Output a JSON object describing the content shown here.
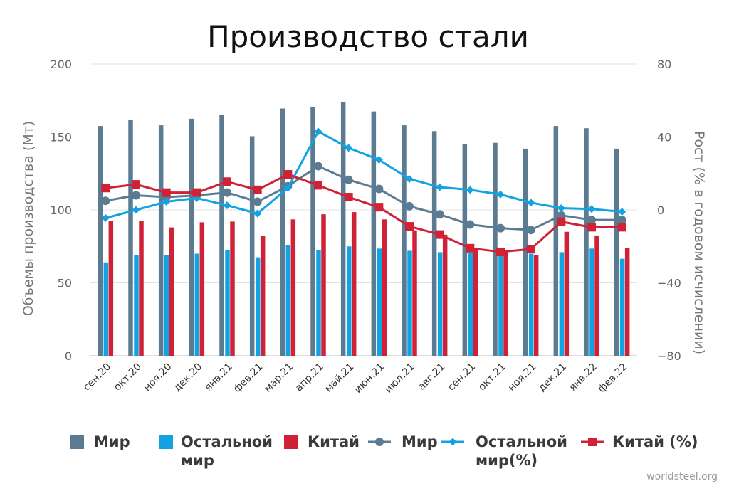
{
  "chart_data": {
    "type": "bar+line",
    "title": "Производство стали",
    "ylabel_left": "Объемы производства (Мт)",
    "ylabel_right": "Рост (% в годовом исчислении)",
    "ylim_left": [
      0,
      200
    ],
    "ylim_right": [
      -80,
      80
    ],
    "yticks_left": [
      "0",
      "50",
      "100",
      "150",
      "200"
    ],
    "yticks_right": [
      "−80",
      "−40",
      "0",
      "40",
      "80"
    ],
    "grid": true,
    "legend_position": "bottom",
    "categories": [
      "сен.20",
      "окт.20",
      "ноя.20",
      "дек.20",
      "янв.21",
      "фев.21",
      "мар.21",
      "апр.21",
      "май.21",
      "июн.21",
      "июл.21",
      "авг.21",
      "сен.21",
      "окт.21",
      "ноя.21",
      "дек.21",
      "янв.22",
      "фев.22"
    ],
    "bar_series": [
      {
        "name": "Мир",
        "color": "#5b7b92",
        "axis": "left",
        "values": [
          157.5,
          161.5,
          158,
          162.5,
          165,
          150.5,
          169.5,
          170.5,
          174,
          167.5,
          158,
          154,
          145,
          146,
          142,
          157.5,
          156,
          142
        ]
      },
      {
        "name": "Остальной мир",
        "color": "#12a3e2",
        "axis": "left",
        "values": [
          64,
          69,
          69,
          70,
          72.5,
          67.5,
          76,
          72.5,
          75,
          73.5,
          72,
          71,
          70.5,
          69.5,
          70,
          71,
          73.5,
          66.5
        ]
      },
      {
        "name": "Китай",
        "color": "#cf2236",
        "axis": "left",
        "values": [
          92.5,
          92.5,
          88,
          91.5,
          92,
          82,
          93.5,
          97,
          98.5,
          93.5,
          86,
          83,
          73,
          71.5,
          69,
          85,
          82.5,
          74
        ]
      }
    ],
    "line_series": [
      {
        "name": "Мир",
        "color": "#5b7b92",
        "marker": "circle",
        "axis": "right",
        "values": [
          5,
          8,
          7,
          8,
          9.5,
          4.5,
          13,
          24,
          16.5,
          11.5,
          2,
          -2.5,
          -8,
          -10,
          -11,
          -3,
          -5.5,
          -5.5
        ]
      },
      {
        "name": "Остальной мир(%)",
        "color": "#12a3e2",
        "marker": "diamond",
        "axis": "right",
        "values": [
          -4.5,
          0,
          4.5,
          6.5,
          2.5,
          -2,
          12,
          43,
          34,
          27.5,
          17,
          12.5,
          11,
          8.5,
          4,
          1,
          0.5,
          -1
        ]
      },
      {
        "name": "Китай (%)",
        "color": "#cf2236",
        "marker": "square",
        "axis": "right",
        "values": [
          12,
          14,
          9.5,
          9.5,
          15.5,
          11,
          19.5,
          13.5,
          7,
          1.5,
          -9,
          -13.5,
          -21,
          -23,
          -21.5,
          -6.5,
          -9.5,
          -9.5
        ]
      }
    ],
    "legend": [
      {
        "label": "Мир",
        "kind": "bar",
        "color": "#5b7b92"
      },
      {
        "label": "Остальной",
        "label2": "мир",
        "kind": "bar",
        "color": "#12a3e2"
      },
      {
        "label": "Китай",
        "kind": "bar",
        "color": "#cf2236"
      },
      {
        "label": "Мир",
        "kind": "line-circle",
        "color": "#5b7b92"
      },
      {
        "label": "Остальной",
        "label2": "мир(%)",
        "kind": "line-diamond",
        "color": "#12a3e2"
      },
      {
        "label": "Китай (%)",
        "kind": "line-square",
        "color": "#cf2236"
      }
    ],
    "source": "worldsteel.org"
  }
}
